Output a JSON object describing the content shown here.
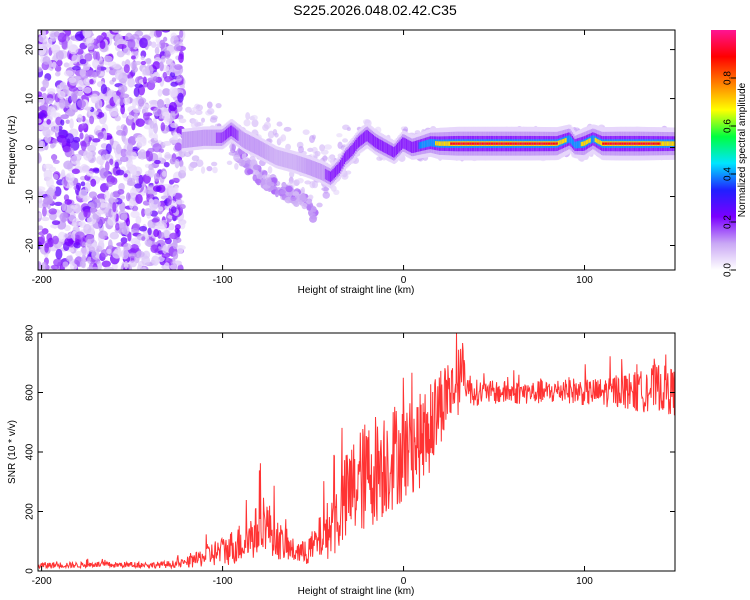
{
  "title": "S225.2026.048.02.42.C35",
  "chart_data": [
    {
      "type": "heatmap",
      "xlabel": "Height of straight line (km)",
      "ylabel": "Frequency (Hz)",
      "xlim": [
        -202,
        150
      ],
      "ylim": [
        -25,
        24
      ],
      "xticks": [
        -200,
        -100,
        0,
        100
      ],
      "xtick_labels": [
        "-200",
        "-100",
        "0",
        "100"
      ],
      "yticks": [
        -20,
        -10,
        0,
        10,
        20
      ],
      "ytick_labels": [
        "-20",
        "-10",
        "0",
        "10",
        "20"
      ],
      "noise_region_x": [
        -202,
        -122
      ],
      "ridge": {
        "x": [
          -122,
          -110,
          -100,
          -95,
          -88,
          -80,
          -70,
          -60,
          -52,
          -45,
          -40,
          -35,
          -32,
          -28,
          -25,
          -20,
          -15,
          -10,
          -5,
          0,
          5,
          10,
          15,
          20,
          30,
          50,
          70,
          85,
          92,
          95,
          100,
          105,
          110,
          120,
          130,
          140,
          150
        ],
        "y": [
          1.5,
          2,
          2,
          3.5,
          1.5,
          0,
          -2,
          -3,
          -4,
          -5,
          -6,
          -4,
          -2,
          -0.5,
          1,
          2.5,
          1,
          0,
          -1,
          1,
          0,
          0.5,
          1,
          0.8,
          0.8,
          0.8,
          0.8,
          0.8,
          1.8,
          0.5,
          0.8,
          1.8,
          0.8,
          0.8,
          0.8,
          0.8,
          0.8
        ],
        "amplitude": [
          0.15,
          0.15,
          0.18,
          0.2,
          0.15,
          0.12,
          0.1,
          0.1,
          0.12,
          0.15,
          0.2,
          0.2,
          0.2,
          0.3,
          0.25,
          0.35,
          0.3,
          0.25,
          0.2,
          0.3,
          0.3,
          0.4,
          0.55,
          0.8,
          0.95,
          0.95,
          0.95,
          0.9,
          0.6,
          0.4,
          0.85,
          0.6,
          0.9,
          0.95,
          0.95,
          0.9,
          0.85
        ]
      },
      "secondary_branch": {
        "x": [
          -95,
          -85,
          -75,
          -65,
          -55,
          -48
        ],
        "y": [
          0,
          -4,
          -7,
          -9,
          -11,
          -14
        ]
      },
      "colorbar": {
        "label": "Normalized spectral amplitude",
        "range": [
          0.0,
          1.0
        ],
        "ticks": [
          0.0,
          0.2,
          0.4,
          0.6,
          0.8
        ],
        "tick_labels": [
          "0.0",
          "0.2",
          "0.4",
          "0.6",
          "0.8"
        ],
        "colors": [
          "#ffffff",
          "#c9a7f5",
          "#7b00ff",
          "#2020ff",
          "#00e5ff",
          "#00ff40",
          "#ffff00",
          "#ff7f00",
          "#ff0000",
          "#ff1493"
        ]
      }
    },
    {
      "type": "line",
      "xlabel": "Height of straight line (km)",
      "ylabel": "SNR (10 * v/v)",
      "xlim": [
        -202,
        150
      ],
      "ylim": [
        0,
        800
      ],
      "xticks": [
        -200,
        -100,
        0,
        100
      ],
      "xtick_labels": [
        "-200",
        "-100",
        "0",
        "100"
      ],
      "yticks": [
        0,
        200,
        400,
        600,
        800
      ],
      "ytick_labels": [
        "0",
        "200",
        "400",
        "600",
        "800"
      ],
      "color": "#ff3333",
      "series": [
        {
          "name": "SNR",
          "x": [
            -202,
            -190,
            -180,
            -170,
            -160,
            -150,
            -140,
            -130,
            -122,
            -115,
            -110,
            -105,
            -100,
            -95,
            -90,
            -85,
            -80,
            -78,
            -75,
            -70,
            -65,
            -60,
            -55,
            -50,
            -45,
            -40,
            -35,
            -30,
            -25,
            -20,
            -15,
            -10,
            -5,
            0,
            5,
            10,
            15,
            20,
            25,
            30,
            33,
            35,
            40,
            45,
            50,
            60,
            70,
            80,
            90,
            100,
            110,
            120,
            130,
            140,
            150
          ],
          "y": [
            18,
            20,
            20,
            22,
            20,
            21,
            20,
            22,
            25,
            35,
            50,
            60,
            65,
            80,
            95,
            110,
            140,
            180,
            150,
            110,
            80,
            65,
            60,
            80,
            120,
            150,
            200,
            260,
            300,
            320,
            350,
            370,
            390,
            400,
            420,
            440,
            480,
            560,
            600,
            620,
            700,
            620,
            600,
            600,
            600,
            600,
            600,
            600,
            610,
            600,
            600,
            610,
            600,
            620,
            600
          ],
          "amplitude": [
            12,
            10,
            10,
            10,
            10,
            10,
            10,
            12,
            14,
            25,
            35,
            45,
            50,
            60,
            70,
            80,
            90,
            100,
            90,
            70,
            50,
            40,
            40,
            60,
            80,
            110,
            140,
            170,
            180,
            190,
            190,
            190,
            180,
            170,
            160,
            160,
            150,
            140,
            110,
            100,
            80,
            60,
            45,
            40,
            40,
            40,
            40,
            40,
            45,
            45,
            50,
            60,
            70,
            80,
            80
          ]
        }
      ]
    }
  ]
}
